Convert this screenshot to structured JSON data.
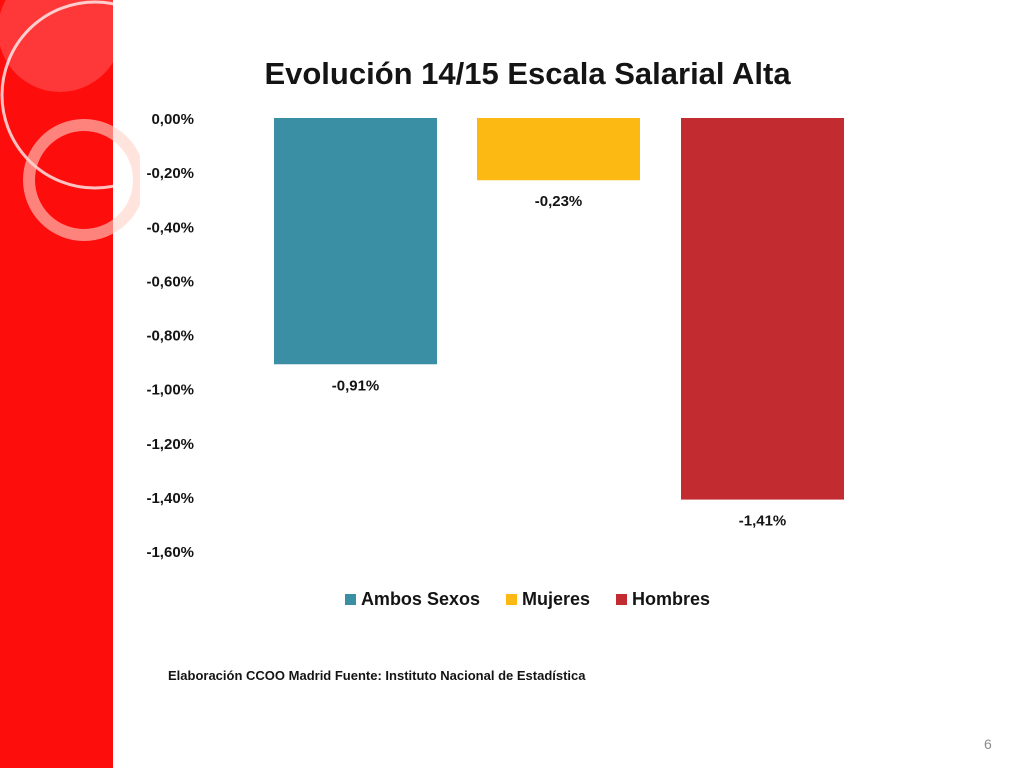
{
  "slide": {
    "source_note": "Elaboración CCOO Madrid Fuente: Instituto Nacional de Estadística",
    "page_number": "6",
    "accent_color": "#fe0d0d"
  },
  "chart_data": {
    "type": "bar",
    "title": "Evolución 14/15 Escala Salarial Alta",
    "xlabel": "",
    "ylabel": "",
    "ylim": [
      -1.6,
      0
    ],
    "y_ticks": [
      "0,00%",
      "-0,20%",
      "-0,40%",
      "-0,60%",
      "-0,80%",
      "-1,00%",
      "-1,20%",
      "-1,40%",
      "-1,60%"
    ],
    "y_tick_values": [
      0,
      -0.2,
      -0.4,
      -0.6,
      -0.8,
      -1.0,
      -1.2,
      -1.4,
      -1.6
    ],
    "grid": false,
    "legend_position": "bottom",
    "series": [
      {
        "name": "Ambos Sexos",
        "value": -0.91,
        "label": "-0,91%",
        "color": "#3a8fa5"
      },
      {
        "name": "Mujeres",
        "value": -0.23,
        "label": "-0,23%",
        "color": "#fdb913"
      },
      {
        "name": "Hombres",
        "value": -1.41,
        "label": "-1,41%",
        "color": "#c22b2f"
      }
    ]
  }
}
